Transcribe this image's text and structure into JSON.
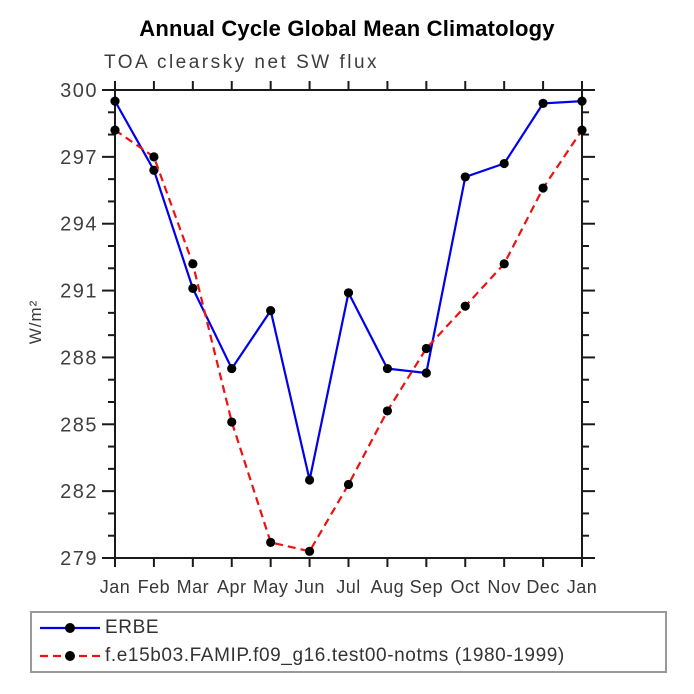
{
  "chart_data": {
    "type": "line",
    "title": "Annual Cycle Global Mean Climatology",
    "subtitle": "TOA clearsky net SW flux",
    "xlabel": "",
    "ylabel": "W/m²",
    "categories": [
      "Jan",
      "Feb",
      "Mar",
      "Apr",
      "May",
      "Jun",
      "Jul",
      "Aug",
      "Sep",
      "Oct",
      "Nov",
      "Dec",
      "Jan"
    ],
    "ylim": [
      279,
      300
    ],
    "ytick_major_step": 3,
    "ytick_minor_step": 1,
    "ytick_major_labels": [
      "300",
      "297",
      "294",
      "291",
      "288",
      "285",
      "282",
      "279"
    ],
    "grid": false,
    "legend_position": "bottom-left-box",
    "frame_color": "#1a1a1a",
    "marker_color": "#000000",
    "series": [
      {
        "key": "erbe",
        "name": "ERBE",
        "color": "#0000ee",
        "style": "solid",
        "marker": "circle",
        "values": [
          299.5,
          296.4,
          291.1,
          287.5,
          290.1,
          282.5,
          290.9,
          287.5,
          287.3,
          296.1,
          296.7,
          299.4,
          299.5
        ]
      },
      {
        "key": "model",
        "name": "f.e15b03.FAMIP.f09_g16.test00-notms (1980-1999)",
        "color": "#ee1111",
        "style": "dashed",
        "marker": "circle",
        "values": [
          298.2,
          297.0,
          292.2,
          285.1,
          279.7,
          279.3,
          282.3,
          285.6,
          288.4,
          290.3,
          292.2,
          295.6,
          298.2
        ]
      }
    ]
  }
}
